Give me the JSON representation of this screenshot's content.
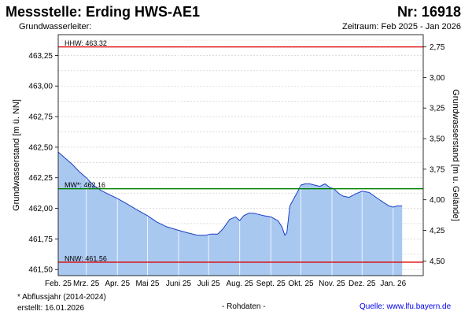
{
  "header": {
    "title": "Messstelle: Erding HWS-AE1",
    "number": "Nr: 16918",
    "aquifer_label": "Grundwasserleiter:",
    "period": "Zeitraum: Feb 2025 - Jan 2026"
  },
  "footer": {
    "note": "* Abflussjahr (2014-2024)",
    "created": "erstellt:  16.01.2026",
    "raw": "- Rohdaten -",
    "source": "Quelle:  www.lfu.bayern.de"
  },
  "colors": {
    "fill": "#a8c8f0",
    "line": "#1a3ec8",
    "hhw": "#e00000",
    "mw": "#008000",
    "nnw": "#e00000",
    "grid": "#c8c8c8"
  },
  "chart_data": {
    "type": "area",
    "ylabel_left": "Grundwasserstand [m ü. NN]",
    "ylabel_right": "Grundwasserstand [m u. Gelände]",
    "ylim": [
      461.45,
      463.42
    ],
    "yticks_left": [
      "461,50",
      "461,75",
      "462,00",
      "462,25",
      "462,50",
      "462,75",
      "463,00",
      "463,25"
    ],
    "yticks_right": [
      "2,75",
      "3,00",
      "3,25",
      "3,50",
      "3,75",
      "4,00",
      "4,25",
      "4,50"
    ],
    "xticks": [
      "Feb. 25",
      "Mrz. 25",
      "Apr. 25",
      "Mai 25",
      "Juni 25",
      "Juli 25",
      "Aug. 25",
      "Sept. 25",
      "Okt. 25",
      "Nov. 25",
      "Dez. 25",
      "Jan. 26"
    ],
    "reference_lines": [
      {
        "key": "hhw",
        "label": "HHW: 463.32",
        "value": 463.32
      },
      {
        "key": "mw",
        "label": "MW*: 462.16",
        "value": 462.16
      },
      {
        "key": "nnw",
        "label": "NNW: 461.56",
        "value": 461.56
      }
    ],
    "series": [
      {
        "x": [
          "2025-02-01",
          "2025-02-08",
          "2025-02-15",
          "2025-02-22",
          "2025-03-01",
          "2025-03-08",
          "2025-03-15",
          "2025-03-22",
          "2025-04-01",
          "2025-04-10",
          "2025-04-20",
          "2025-05-01",
          "2025-05-10",
          "2025-05-20",
          "2025-06-01",
          "2025-06-10",
          "2025-06-20",
          "2025-06-28",
          "2025-07-03",
          "2025-07-10",
          "2025-07-15",
          "2025-07-22",
          "2025-07-28",
          "2025-08-01",
          "2025-08-05",
          "2025-08-10",
          "2025-08-15",
          "2025-08-20",
          "2025-08-25",
          "2025-09-01",
          "2025-09-08",
          "2025-09-12",
          "2025-09-15",
          "2025-09-17",
          "2025-09-20",
          "2025-09-24",
          "2025-09-28",
          "2025-10-01",
          "2025-10-05",
          "2025-10-10",
          "2025-10-15",
          "2025-10-20",
          "2025-10-25",
          "2025-10-30",
          "2025-11-03",
          "2025-11-08",
          "2025-11-12",
          "2025-11-18",
          "2025-11-25",
          "2025-12-01",
          "2025-12-08",
          "2025-12-15",
          "2025-12-22",
          "2025-12-28",
          "2026-01-01",
          "2026-01-05",
          "2026-01-10"
        ],
        "values": [
          462.46,
          462.41,
          462.36,
          462.3,
          462.25,
          462.19,
          462.15,
          462.12,
          462.08,
          462.04,
          461.99,
          461.94,
          461.89,
          461.85,
          461.82,
          461.8,
          461.78,
          461.78,
          461.79,
          461.79,
          461.83,
          461.91,
          461.93,
          461.9,
          461.94,
          461.96,
          461.96,
          461.95,
          461.94,
          461.93,
          461.9,
          461.85,
          461.78,
          461.8,
          462.02,
          462.08,
          462.14,
          462.19,
          462.2,
          462.2,
          462.19,
          462.18,
          462.2,
          462.17,
          462.16,
          462.12,
          462.1,
          462.09,
          462.12,
          462.14,
          462.13,
          462.09,
          462.05,
          462.02,
          462.01,
          462.02,
          462.02
        ]
      }
    ]
  }
}
